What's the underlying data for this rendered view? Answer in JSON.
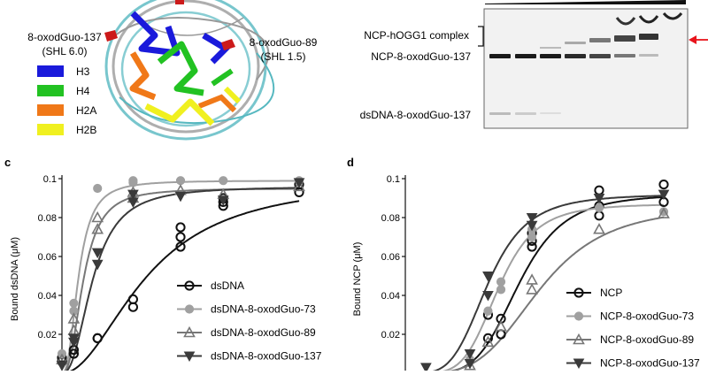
{
  "panel_a": {
    "site_137": "8-oxodGuo-137",
    "shl_137": "(SHL 6.0)",
    "site_89": "8-oxodGuo-89",
    "shl_89": "(SHL 1.5)",
    "legend": [
      {
        "label": "H3",
        "color": "#1a1adb"
      },
      {
        "label": "H4",
        "color": "#22c222"
      },
      {
        "label": "H2A",
        "color": "#f07818"
      },
      {
        "label": "H2B",
        "color": "#f0f020"
      }
    ]
  },
  "panel_b": {
    "complex_label": "NCP-hOGG1 complex",
    "ncp_label": "NCP-8-oxodGuo-137",
    "dsdna_label": "dsDNA-8-oxodGuo-137"
  },
  "colors": {
    "black": "#111111",
    "light_gray": "#a0a0a0",
    "mid_gray": "#777777",
    "dark_gray": "#3a3a3a",
    "arrow_red": "#e8141c"
  },
  "chart_data": [
    {
      "panel": "c",
      "type": "scatter",
      "ylabel": "Bound dsDNA (μM)",
      "ylim": [
        0,
        0.1
      ],
      "yticks": [
        "0.1",
        "0.08",
        "0.06",
        "0.04",
        "0.02"
      ],
      "ytick_values": [
        0.1,
        0.08,
        0.06,
        0.04,
        0.02
      ],
      "xlim": [
        0,
        1
      ],
      "series": [
        {
          "name": "dsDNA",
          "marker": "circle-open",
          "color": "#111111",
          "x": [
            0.0,
            0.0,
            0.05,
            0.05,
            0.15,
            0.15,
            0.3,
            0.3,
            0.5,
            0.5,
            0.5,
            0.68,
            0.68,
            0.68,
            1.0,
            1.0
          ],
          "y": [
            0.006,
            0.008,
            0.01,
            0.012,
            0.018,
            0.018,
            0.038,
            0.034,
            0.075,
            0.07,
            0.065,
            0.09,
            0.088,
            0.086,
            0.097,
            0.093
          ],
          "curve": {
            "top": 0.1,
            "ec50": 0.36,
            "hill": 2.0
          }
        },
        {
          "name": "dsDNA-8-oxodGuo-73",
          "marker": "circle-filled",
          "color": "#a0a0a0",
          "x": [
            0.0,
            0.05,
            0.05,
            0.15,
            0.3,
            0.3,
            0.5,
            0.68,
            1.0
          ],
          "y": [
            0.01,
            0.032,
            0.036,
            0.095,
            0.099,
            0.098,
            0.099,
            0.099,
            0.099
          ],
          "curve": {
            "top": 0.099,
            "ec50": 0.07,
            "hill": 2.5
          }
        },
        {
          "name": "dsDNA-8-oxodGuo-89",
          "marker": "triangle-open",
          "color": "#777777",
          "x": [
            0.0,
            0.05,
            0.05,
            0.15,
            0.15,
            0.3,
            0.3,
            0.5,
            0.68,
            1.0
          ],
          "y": [
            0.007,
            0.028,
            0.022,
            0.08,
            0.074,
            0.093,
            0.09,
            0.094,
            0.092,
            0.096
          ],
          "curve": {
            "top": 0.095,
            "ec50": 0.09,
            "hill": 2.5
          }
        },
        {
          "name": "dsDNA-8-oxodGuo-137",
          "marker": "triangle-down-filled",
          "color": "#3a3a3a",
          "x": [
            0.0,
            0.05,
            0.05,
            0.15,
            0.15,
            0.3,
            0.3,
            0.5,
            0.68,
            1.0
          ],
          "y": [
            0.004,
            0.016,
            0.018,
            0.056,
            0.062,
            0.088,
            0.092,
            0.091,
            0.089,
            0.098
          ],
          "curve": {
            "top": 0.096,
            "ec50": 0.13,
            "hill": 2.4
          }
        }
      ]
    },
    {
      "panel": "d",
      "type": "scatter",
      "ylabel": "Bound NCP (μM)",
      "ylim": [
        0,
        0.1
      ],
      "yticks": [
        "0.1",
        "0.08",
        "0.06",
        "0.04",
        "0.02"
      ],
      "ytick_values": [
        0.1,
        0.08,
        0.06,
        0.04,
        0.02
      ],
      "xlim": [
        0,
        1
      ],
      "series": [
        {
          "name": "NCP",
          "marker": "circle-open",
          "color": "#111111",
          "x": [
            0.32,
            0.32,
            0.37,
            0.37,
            0.49,
            0.49,
            0.49,
            0.75,
            0.75,
            0.75,
            1.0,
            1.0
          ],
          "y": [
            0.018,
            0.03,
            0.02,
            0.028,
            0.068,
            0.072,
            0.065,
            0.094,
            0.086,
            0.081,
            0.097,
            0.088
          ],
          "curve": {
            "top": 0.092,
            "ec50": 0.44,
            "hill": 5.0
          }
        },
        {
          "name": "NCP-8-oxodGuo-73",
          "marker": "circle-filled",
          "color": "#a0a0a0",
          "x": [
            0.25,
            0.32,
            0.37,
            0.37,
            0.49,
            0.49,
            0.75,
            1.0
          ],
          "y": [
            0.007,
            0.032,
            0.047,
            0.043,
            0.074,
            0.07,
            0.085,
            0.083
          ],
          "curve": {
            "top": 0.087,
            "ec50": 0.36,
            "hill": 5.0
          }
        },
        {
          "name": "NCP-8-oxodGuo-89",
          "marker": "triangle-open",
          "color": "#777777",
          "x": [
            0.25,
            0.32,
            0.37,
            0.49,
            0.49,
            0.75,
            1.0
          ],
          "y": [
            0.004,
            0.016,
            0.024,
            0.048,
            0.043,
            0.074,
            0.082
          ],
          "curve": {
            "top": 0.086,
            "ec50": 0.52,
            "hill": 4.0
          }
        },
        {
          "name": "NCP-8-oxodGuo-137",
          "marker": "triangle-down-filled",
          "color": "#3a3a3a",
          "x": [
            0.08,
            0.25,
            0.25,
            0.32,
            0.32,
            0.49,
            0.49,
            0.75,
            1.0
          ],
          "y": [
            0.003,
            0.005,
            0.01,
            0.05,
            0.04,
            0.076,
            0.08,
            0.09,
            0.092
          ],
          "curve": {
            "top": 0.092,
            "ec50": 0.32,
            "hill": 4.2
          }
        }
      ]
    }
  ]
}
